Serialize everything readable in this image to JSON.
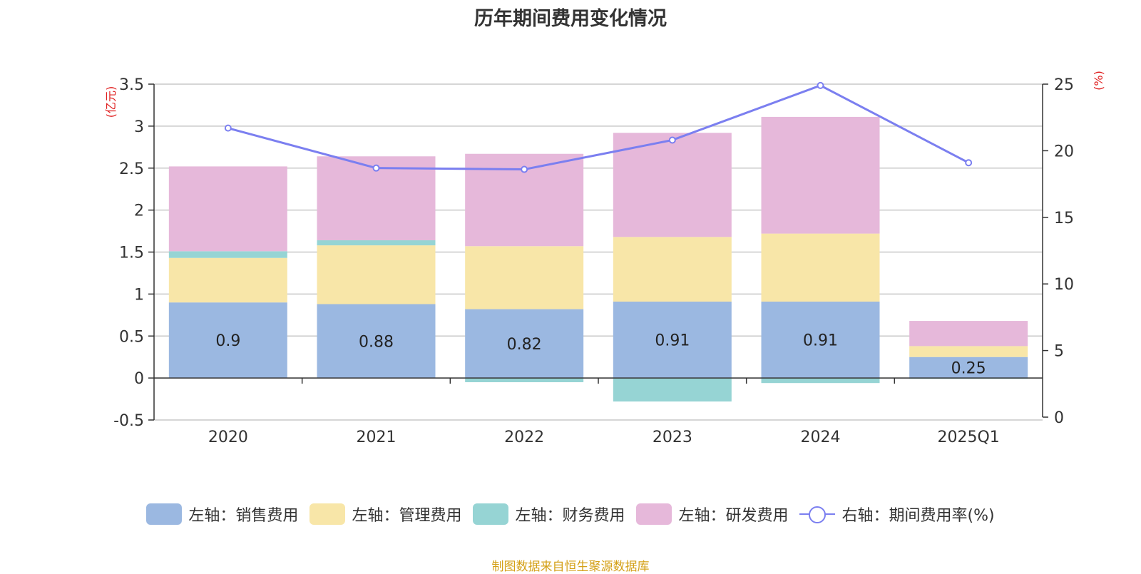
{
  "chart_data": {
    "type": "bar",
    "title": "历年期间费用变化情况",
    "categories": [
      "2020",
      "2021",
      "2022",
      "2023",
      "2024",
      "2025Q1"
    ],
    "y_left_label": "(亿元)",
    "y_right_label": "(%)",
    "y_left_ticks": [
      "3.5",
      "3",
      "2.5",
      "2",
      "1.5",
      "1",
      "0.5",
      "0",
      "-0.5"
    ],
    "y_left_range": [
      -0.5,
      3.5
    ],
    "y_right_ticks": [
      "25",
      "20",
      "15",
      "10",
      "5",
      "0"
    ],
    "y_right_range": [
      0,
      25
    ],
    "grid": true,
    "legend_position": "bottom",
    "series": [
      {
        "name": "左轴：销售费用",
        "axis": "left",
        "stack": true,
        "color": "#9bb8e1",
        "values": [
          0.9,
          0.88,
          0.82,
          0.91,
          0.91,
          0.25
        ],
        "labels": [
          "0.9",
          "0.88",
          "0.82",
          "0.91",
          "0.91",
          "0.25"
        ]
      },
      {
        "name": "左轴：管理费用",
        "axis": "left",
        "stack": true,
        "color": "#f8e6a8",
        "values": [
          0.53,
          0.7,
          0.75,
          0.77,
          0.81,
          0.13
        ]
      },
      {
        "name": "左轴：财务费用",
        "axis": "left",
        "stack": true,
        "color": "#96d4d4",
        "values": [
          0.08,
          0.06,
          -0.05,
          -0.28,
          -0.06,
          -0.01
        ]
      },
      {
        "name": "左轴：研发费用",
        "axis": "left",
        "stack": true,
        "color": "#e6b8da",
        "values": [
          1.01,
          1.0,
          1.1,
          1.24,
          1.39,
          0.3
        ]
      },
      {
        "name": "右轴：期间费用率(%)",
        "axis": "right",
        "type": "line",
        "color": "#7b7ff0",
        "values": [
          21.7,
          18.7,
          18.6,
          20.8,
          24.9,
          19.1
        ]
      }
    ]
  },
  "source_note": "制图数据来自恒生聚源数据库"
}
